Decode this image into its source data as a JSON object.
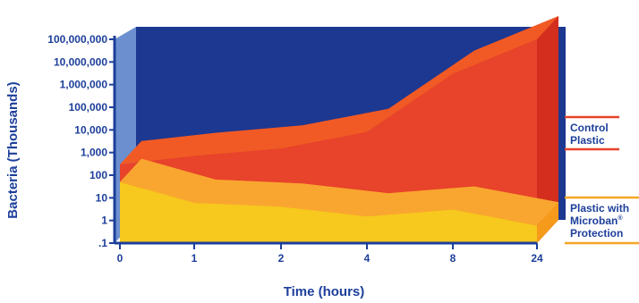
{
  "chart_data": {
    "type": "area",
    "title": "",
    "xlabel": "Time (hours)",
    "ylabel": "Bacteria (Thousands)",
    "x": [
      "0",
      "1",
      "2",
      "4",
      "8",
      "24"
    ],
    "y_scale": "log",
    "y_ticks": [
      "100,000,000",
      "10,000,000",
      "1,000,000",
      "100,000",
      "10,000",
      "1,000",
      "100",
      "10",
      "1",
      ".1"
    ],
    "ylim": [
      0.1,
      100000000
    ],
    "grid": false,
    "legend_placement": "right",
    "series": [
      {
        "name": "Control Plastic",
        "values": [
          300,
          700,
          1500,
          8000,
          3000000,
          100000000
        ],
        "color": "#e8432b"
      },
      {
        "name": "Plastic with Microban® Protection",
        "values": [
          50,
          6,
          4,
          1.5,
          3,
          0.6
        ],
        "color": "#f7c81e"
      }
    ],
    "colors": {
      "background_wall": "#1c3891",
      "side_wall": "#6c8fcf",
      "axis": "#1d3f9a",
      "legend_control": "#e8432b",
      "legend_microban": "#f5a623"
    }
  }
}
